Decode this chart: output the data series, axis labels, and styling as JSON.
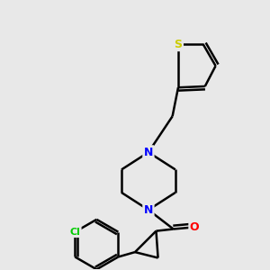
{
  "background_color": "#e8e8e8",
  "atoms": {
    "S": {
      "color": "#cccc00"
    },
    "N": {
      "color": "#0000ff"
    },
    "O": {
      "color": "#ff0000"
    },
    "Cl": {
      "color": "#00cc00"
    }
  },
  "bond_color": "#000000",
  "bond_width": 1.8,
  "figsize": [
    3.0,
    3.0
  ],
  "dpi": 100
}
